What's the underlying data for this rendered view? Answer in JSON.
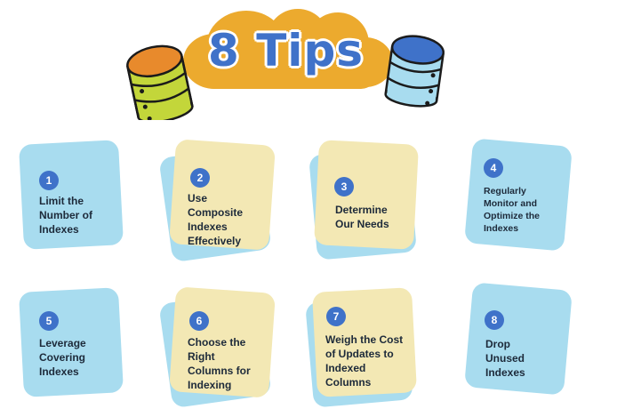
{
  "title": "8 Tips",
  "colors": {
    "cloud": "#ecaa2e",
    "title_text": "#3f72c9",
    "card_blue": "#a8dcef",
    "card_yellow": "#f3e8b4",
    "badge": "#3f72c9",
    "db_left_top": "#e88a2c",
    "db_left_body": "#c3d63a",
    "db_right_top": "#3f72c9",
    "db_right_body": "#a8dcef"
  },
  "icons": [
    "database-icon-left",
    "database-icon-right",
    "cloud-shape"
  ],
  "tips": [
    {
      "number": "1",
      "label": "Limit the\nNumber of\nIndexes"
    },
    {
      "number": "2",
      "label": "Use\nComposite\nIndexes\nEffectively"
    },
    {
      "number": "3",
      "label": "Determine\nOur Needs"
    },
    {
      "number": "4",
      "label": "Regularly\nMonitor and\nOptimize the\nIndexes"
    },
    {
      "number": "5",
      "label": "Leverage\nCovering\nIndexes"
    },
    {
      "number": "6",
      "label": "Choose the\nRight\nColumns for\nIndexing"
    },
    {
      "number": "7",
      "label": "Weigh the Cost\nof Updates to\nIndexed\nColumns"
    },
    {
      "number": "8",
      "label": "Drop\nUnused\nIndexes"
    }
  ]
}
